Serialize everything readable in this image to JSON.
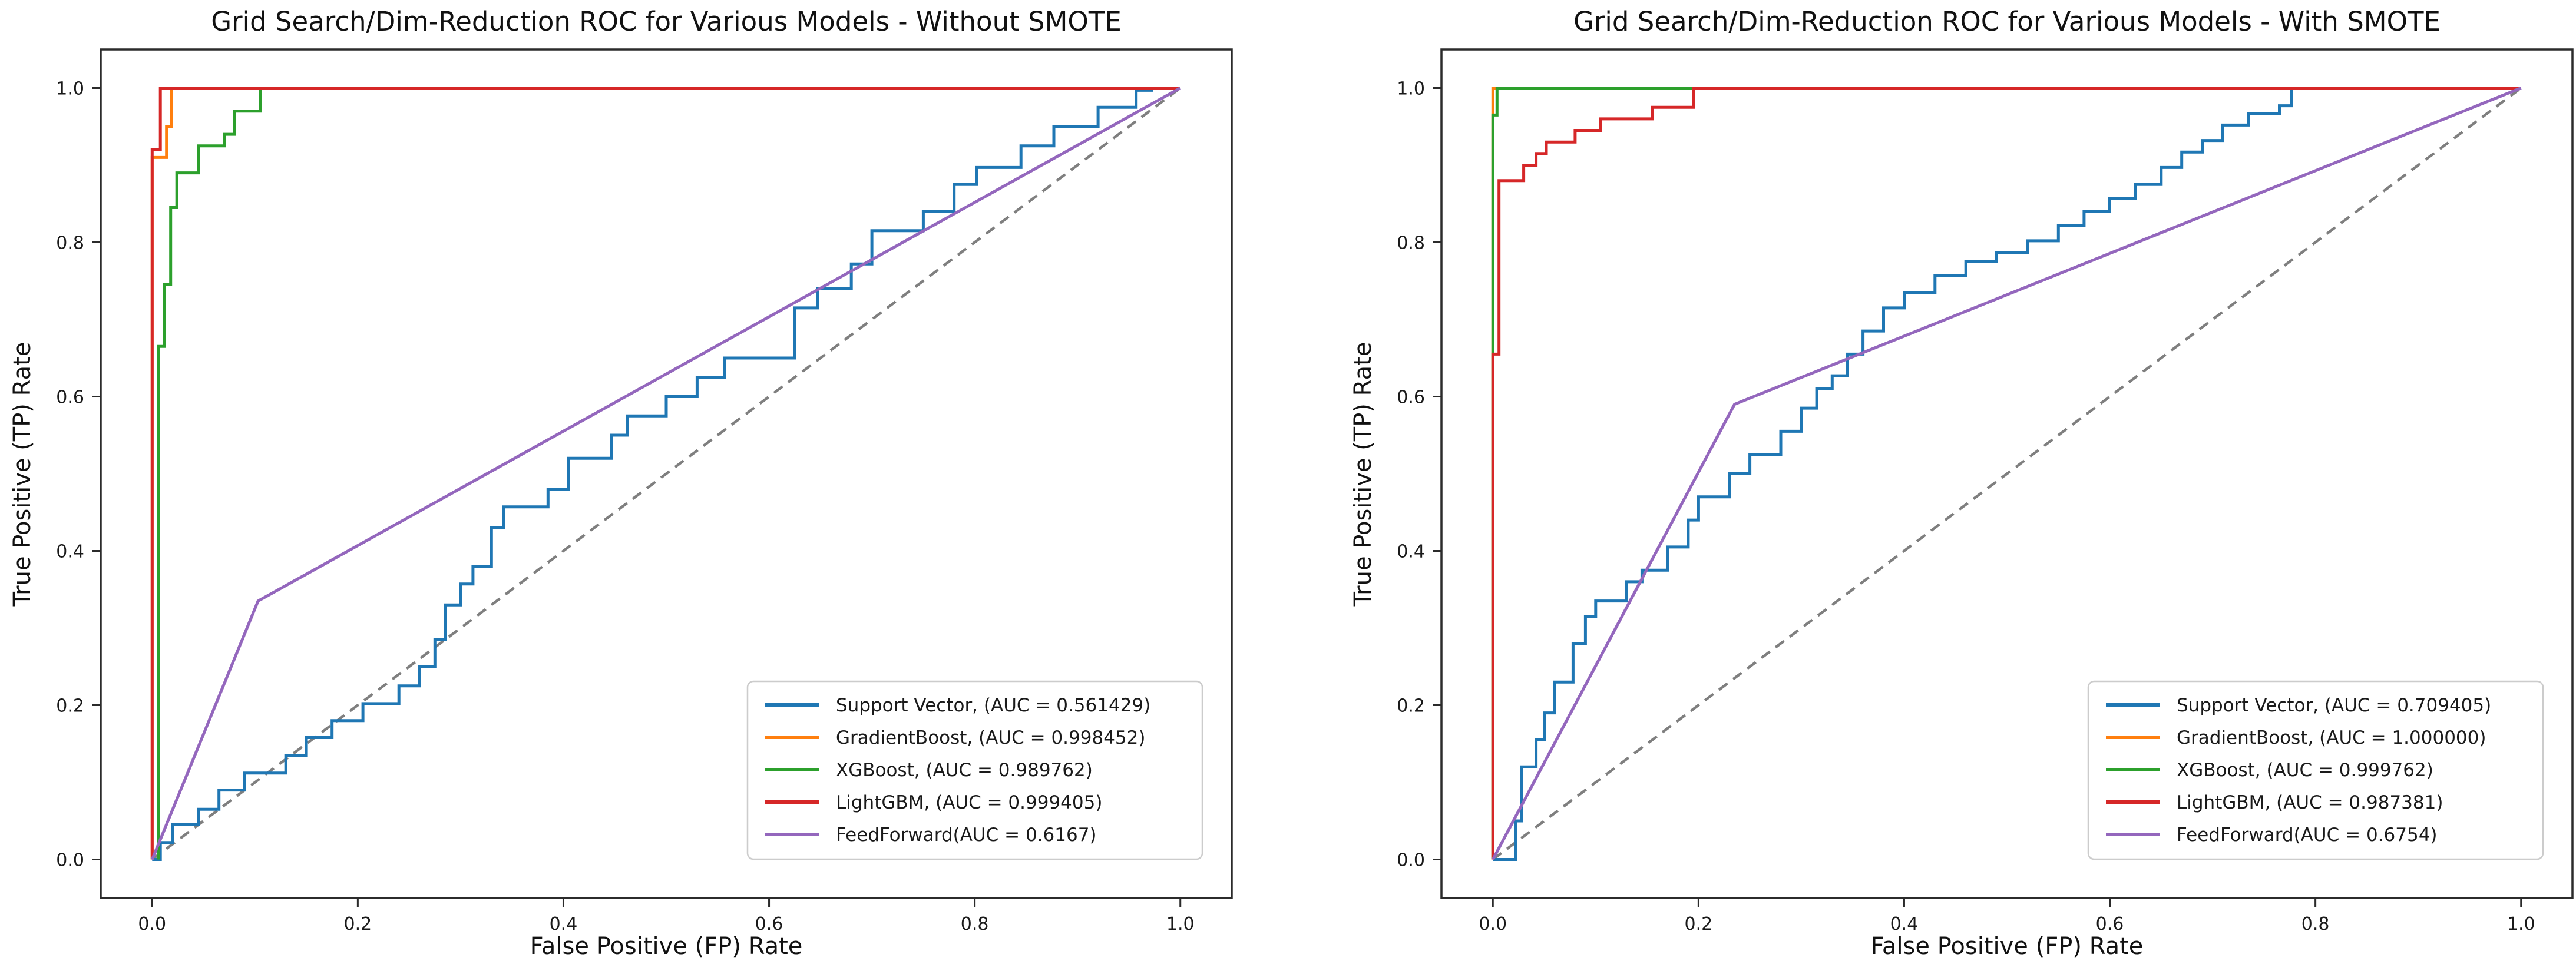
{
  "page": {
    "background": "#ffffff",
    "description": "Two side-by-side ROC curve plots comparing five models without and with SMOTE"
  },
  "colors": {
    "support_vector": "#1f77b4",
    "gradient_boost": "#ff7f0e",
    "xgboost": "#2ca02c",
    "lightgbm": "#d62728",
    "feedforward": "#9467bd",
    "diagonal": "#7f7f7f",
    "spine": "#2b2b2b",
    "tick_text": "#1a1a1a",
    "legend_border": "#cccccc",
    "legend_bg": "#ffffff"
  },
  "chart_data": [
    {
      "type": "line",
      "title": "Grid Search/Dim-Reduction ROC for Various Models - Without SMOTE",
      "xlabel": "False Positive (FP) Rate",
      "ylabel": "True Positive (TP) Rate",
      "xlim": [
        -0.05,
        1.05
      ],
      "ylim": [
        -0.05,
        1.05
      ],
      "x_tick_labels": [
        "0.0",
        "0.2",
        "0.4",
        "0.6",
        "0.8",
        "1.0"
      ],
      "y_tick_labels": [
        "0.0",
        "0.2",
        "0.4",
        "0.6",
        "0.8",
        "1.0"
      ],
      "grid": false,
      "legend_position": "lower right",
      "auc": {
        "support_vector": 0.561429,
        "gradient_boost": 0.998452,
        "xgboost": 0.989762,
        "lightgbm": 0.999405,
        "feedforward": 0.6167
      },
      "legend": [
        {
          "series": "support_vector",
          "label": "Support Vector, (AUC = 0.561429)"
        },
        {
          "series": "gradient_boost",
          "label": "GradientBoost, (AUC = 0.998452)"
        },
        {
          "series": "xgboost",
          "label": "XGBoost, (AUC = 0.989762)"
        },
        {
          "series": "lightgbm",
          "label": "LightGBM, (AUC = 0.999405)"
        },
        {
          "series": "feedforward",
          "label": "FeedForward(AUC = 0.6167)"
        }
      ],
      "series": [
        {
          "name": "diagonal",
          "style": "dashed",
          "points": [
            [
              0,
              0
            ],
            [
              1,
              1
            ]
          ]
        },
        {
          "name": "support_vector",
          "style": "solid",
          "points": [
            [
              0,
              0
            ],
            [
              0.008,
              0
            ],
            [
              0.008,
              0.022
            ],
            [
              0.02,
              0.022
            ],
            [
              0.02,
              0.045
            ],
            [
              0.045,
              0.045
            ],
            [
              0.045,
              0.065
            ],
            [
              0.065,
              0.065
            ],
            [
              0.065,
              0.09
            ],
            [
              0.09,
              0.09
            ],
            [
              0.09,
              0.112
            ],
            [
              0.13,
              0.112
            ],
            [
              0.13,
              0.135
            ],
            [
              0.15,
              0.135
            ],
            [
              0.15,
              0.158
            ],
            [
              0.175,
              0.158
            ],
            [
              0.175,
              0.18
            ],
            [
              0.205,
              0.18
            ],
            [
              0.205,
              0.202
            ],
            [
              0.24,
              0.202
            ],
            [
              0.24,
              0.225
            ],
            [
              0.26,
              0.225
            ],
            [
              0.26,
              0.25
            ],
            [
              0.275,
              0.25
            ],
            [
              0.275,
              0.285
            ],
            [
              0.285,
              0.285
            ],
            [
              0.285,
              0.33
            ],
            [
              0.3,
              0.33
            ],
            [
              0.3,
              0.357
            ],
            [
              0.312,
              0.357
            ],
            [
              0.312,
              0.38
            ],
            [
              0.33,
              0.38
            ],
            [
              0.33,
              0.43
            ],
            [
              0.342,
              0.43
            ],
            [
              0.342,
              0.457
            ],
            [
              0.385,
              0.457
            ],
            [
              0.385,
              0.48
            ],
            [
              0.405,
              0.48
            ],
            [
              0.405,
              0.52
            ],
            [
              0.447,
              0.52
            ],
            [
              0.447,
              0.55
            ],
            [
              0.462,
              0.55
            ],
            [
              0.462,
              0.575
            ],
            [
              0.5,
              0.575
            ],
            [
              0.5,
              0.6
            ],
            [
              0.53,
              0.6
            ],
            [
              0.53,
              0.625
            ],
            [
              0.557,
              0.625
            ],
            [
              0.557,
              0.65
            ],
            [
              0.625,
              0.65
            ],
            [
              0.625,
              0.715
            ],
            [
              0.647,
              0.715
            ],
            [
              0.647,
              0.74
            ],
            [
              0.68,
              0.74
            ],
            [
              0.68,
              0.772
            ],
            [
              0.7,
              0.772
            ],
            [
              0.7,
              0.815
            ],
            [
              0.75,
              0.815
            ],
            [
              0.75,
              0.84
            ],
            [
              0.78,
              0.84
            ],
            [
              0.78,
              0.875
            ],
            [
              0.802,
              0.875
            ],
            [
              0.802,
              0.897
            ],
            [
              0.845,
              0.897
            ],
            [
              0.845,
              0.925
            ],
            [
              0.877,
              0.925
            ],
            [
              0.877,
              0.95
            ],
            [
              0.92,
              0.95
            ],
            [
              0.92,
              0.975
            ],
            [
              0.957,
              0.975
            ],
            [
              0.957,
              0.997
            ],
            [
              0.972,
              0.997
            ],
            [
              0.972,
              1
            ],
            [
              1,
              1
            ]
          ]
        },
        {
          "name": "gradient_boost",
          "style": "solid",
          "points": [
            [
              0,
              0
            ],
            [
              0,
              0.91
            ],
            [
              0.014,
              0.91
            ],
            [
              0.014,
              0.95
            ],
            [
              0.019,
              0.95
            ],
            [
              0.019,
              1
            ],
            [
              1,
              1
            ]
          ]
        },
        {
          "name": "xgboost",
          "style": "solid",
          "points": [
            [
              0.006,
              0
            ],
            [
              0.006,
              0.665
            ],
            [
              0.012,
              0.665
            ],
            [
              0.012,
              0.745
            ],
            [
              0.018,
              0.745
            ],
            [
              0.018,
              0.845
            ],
            [
              0.024,
              0.845
            ],
            [
              0.024,
              0.89
            ],
            [
              0.045,
              0.89
            ],
            [
              0.045,
              0.925
            ],
            [
              0.07,
              0.925
            ],
            [
              0.07,
              0.94
            ],
            [
              0.08,
              0.94
            ],
            [
              0.08,
              0.97
            ],
            [
              0.105,
              0.97
            ],
            [
              0.105,
              1
            ],
            [
              1,
              1
            ]
          ]
        },
        {
          "name": "lightgbm",
          "style": "solid",
          "points": [
            [
              0,
              0
            ],
            [
              0,
              0.92
            ],
            [
              0.008,
              0.92
            ],
            [
              0.008,
              1
            ],
            [
              1,
              1
            ]
          ]
        },
        {
          "name": "feedforward",
          "style": "solid",
          "points": [
            [
              0,
              0
            ],
            [
              0.103,
              0.335
            ],
            [
              1,
              1
            ]
          ]
        }
      ]
    },
    {
      "type": "line",
      "title": "Grid Search/Dim-Reduction ROC for Various Models - With SMOTE",
      "xlabel": "False Positive (FP) Rate",
      "ylabel": "True Positive (TP) Rate",
      "xlim": [
        -0.05,
        1.05
      ],
      "ylim": [
        -0.05,
        1.05
      ],
      "x_tick_labels": [
        "0.0",
        "0.2",
        "0.4",
        "0.6",
        "0.8",
        "1.0"
      ],
      "y_tick_labels": [
        "0.0",
        "0.2",
        "0.4",
        "0.6",
        "0.8",
        "1.0"
      ],
      "grid": false,
      "legend_position": "lower right",
      "auc": {
        "support_vector": 0.709405,
        "gradient_boost": 1.0,
        "xgboost": 0.999762,
        "lightgbm": 0.987381,
        "feedforward": 0.6754
      },
      "legend": [
        {
          "series": "support_vector",
          "label": "Support Vector, (AUC = 0.709405)"
        },
        {
          "series": "gradient_boost",
          "label": "GradientBoost, (AUC = 1.000000)"
        },
        {
          "series": "xgboost",
          "label": "XGBoost, (AUC = 0.999762)"
        },
        {
          "series": "lightgbm",
          "label": "LightGBM, (AUC = 0.987381)"
        },
        {
          "series": "feedforward",
          "label": "FeedForward(AUC = 0.6754)"
        }
      ],
      "series": [
        {
          "name": "diagonal",
          "style": "dashed",
          "points": [
            [
              0,
              0
            ],
            [
              1,
              1
            ]
          ]
        },
        {
          "name": "support_vector",
          "style": "solid",
          "points": [
            [
              0,
              0
            ],
            [
              0.022,
              0
            ],
            [
              0.022,
              0.05
            ],
            [
              0.028,
              0.05
            ],
            [
              0.028,
              0.12
            ],
            [
              0.042,
              0.12
            ],
            [
              0.042,
              0.155
            ],
            [
              0.05,
              0.155
            ],
            [
              0.05,
              0.19
            ],
            [
              0.06,
              0.19
            ],
            [
              0.06,
              0.23
            ],
            [
              0.078,
              0.23
            ],
            [
              0.078,
              0.28
            ],
            [
              0.09,
              0.28
            ],
            [
              0.09,
              0.315
            ],
            [
              0.1,
              0.315
            ],
            [
              0.1,
              0.335
            ],
            [
              0.13,
              0.335
            ],
            [
              0.13,
              0.36
            ],
            [
              0.145,
              0.36
            ],
            [
              0.145,
              0.375
            ],
            [
              0.17,
              0.375
            ],
            [
              0.17,
              0.405
            ],
            [
              0.19,
              0.405
            ],
            [
              0.19,
              0.44
            ],
            [
              0.2,
              0.44
            ],
            [
              0.2,
              0.47
            ],
            [
              0.23,
              0.47
            ],
            [
              0.23,
              0.5
            ],
            [
              0.25,
              0.5
            ],
            [
              0.25,
              0.525
            ],
            [
              0.28,
              0.525
            ],
            [
              0.28,
              0.555
            ],
            [
              0.3,
              0.555
            ],
            [
              0.3,
              0.585
            ],
            [
              0.315,
              0.585
            ],
            [
              0.315,
              0.61
            ],
            [
              0.33,
              0.61
            ],
            [
              0.33,
              0.627
            ],
            [
              0.345,
              0.627
            ],
            [
              0.345,
              0.655
            ],
            [
              0.36,
              0.655
            ],
            [
              0.36,
              0.685
            ],
            [
              0.38,
              0.685
            ],
            [
              0.38,
              0.715
            ],
            [
              0.4,
              0.715
            ],
            [
              0.4,
              0.735
            ],
            [
              0.43,
              0.735
            ],
            [
              0.43,
              0.757
            ],
            [
              0.46,
              0.757
            ],
            [
              0.46,
              0.775
            ],
            [
              0.49,
              0.775
            ],
            [
              0.49,
              0.787
            ],
            [
              0.52,
              0.787
            ],
            [
              0.52,
              0.802
            ],
            [
              0.55,
              0.802
            ],
            [
              0.55,
              0.822
            ],
            [
              0.575,
              0.822
            ],
            [
              0.575,
              0.84
            ],
            [
              0.6,
              0.84
            ],
            [
              0.6,
              0.857
            ],
            [
              0.625,
              0.857
            ],
            [
              0.625,
              0.875
            ],
            [
              0.65,
              0.875
            ],
            [
              0.65,
              0.897
            ],
            [
              0.67,
              0.897
            ],
            [
              0.67,
              0.917
            ],
            [
              0.69,
              0.917
            ],
            [
              0.69,
              0.932
            ],
            [
              0.71,
              0.932
            ],
            [
              0.71,
              0.952
            ],
            [
              0.735,
              0.952
            ],
            [
              0.735,
              0.967
            ],
            [
              0.765,
              0.967
            ],
            [
              0.765,
              0.977
            ],
            [
              0.777,
              0.977
            ],
            [
              0.777,
              1
            ],
            [
              1,
              1
            ]
          ]
        },
        {
          "name": "gradient_boost",
          "style": "solid",
          "points": [
            [
              0,
              0
            ],
            [
              0,
              1
            ],
            [
              1,
              1
            ]
          ]
        },
        {
          "name": "xgboost",
          "style": "solid",
          "points": [
            [
              0,
              0
            ],
            [
              0,
              0.965
            ],
            [
              0.004,
              0.965
            ],
            [
              0.004,
              1
            ],
            [
              1,
              1
            ]
          ]
        },
        {
          "name": "lightgbm",
          "style": "solid",
          "points": [
            [
              0,
              0
            ],
            [
              0,
              0.655
            ],
            [
              0.006,
              0.655
            ],
            [
              0.006,
              0.88
            ],
            [
              0.03,
              0.88
            ],
            [
              0.03,
              0.9
            ],
            [
              0.042,
              0.9
            ],
            [
              0.042,
              0.915
            ],
            [
              0.052,
              0.915
            ],
            [
              0.052,
              0.93
            ],
            [
              0.08,
              0.93
            ],
            [
              0.08,
              0.945
            ],
            [
              0.105,
              0.945
            ],
            [
              0.105,
              0.96
            ],
            [
              0.155,
              0.96
            ],
            [
              0.155,
              0.975
            ],
            [
              0.195,
              0.975
            ],
            [
              0.195,
              1
            ],
            [
              1,
              1
            ]
          ]
        },
        {
          "name": "feedforward",
          "style": "solid",
          "points": [
            [
              0,
              0
            ],
            [
              0.235,
              0.59
            ],
            [
              1,
              1
            ]
          ]
        }
      ]
    }
  ]
}
